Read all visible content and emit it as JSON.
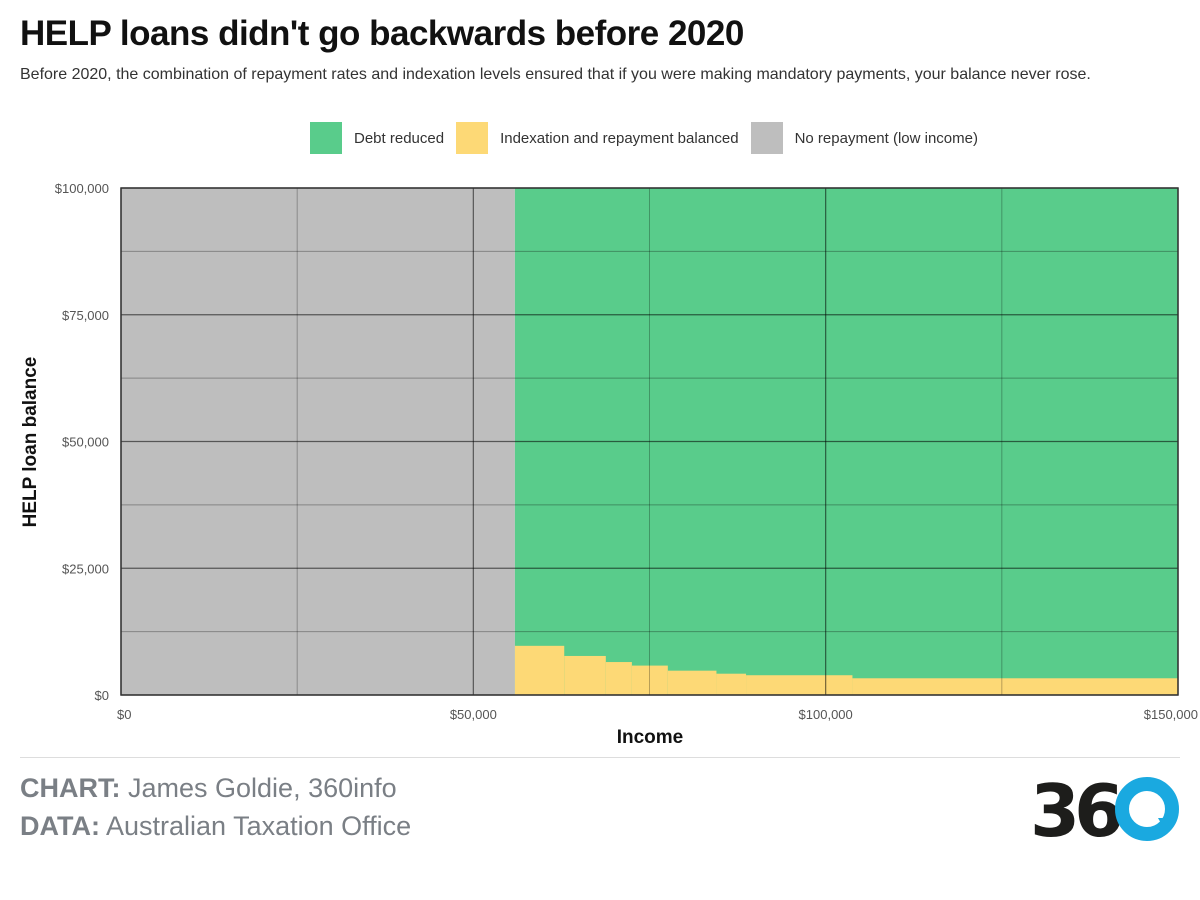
{
  "header": {
    "title": "HELP loans didn't go backwards before 2020",
    "subtitle": "Before 2020, the combination of repayment rates and indexation levels ensured that if you were making mandatory payments, your balance never rose."
  },
  "legend": [
    {
      "label": "Debt reduced",
      "color": "#59cc8b"
    },
    {
      "label": "Indexation and repayment balanced",
      "color": "#fdd976"
    },
    {
      "label": "No repayment (low income)",
      "color": "#bebebe"
    }
  ],
  "chart_data": {
    "type": "area",
    "xlabel": "Income",
    "ylabel": "HELP loan balance",
    "xlim": [
      0,
      150000
    ],
    "ylim": [
      0,
      100000
    ],
    "x_ticks": [
      {
        "value": 0,
        "label": "$0"
      },
      {
        "value": 50000,
        "label": "$50,000"
      },
      {
        "value": 100000,
        "label": "$100,000"
      },
      {
        "value": 150000,
        "label": "$150,000"
      }
    ],
    "y_ticks": [
      {
        "value": 0,
        "label": "$0"
      },
      {
        "value": 25000,
        "label": "$25,000"
      },
      {
        "value": 50000,
        "label": "$50,000"
      },
      {
        "value": 75000,
        "label": "$75,000"
      },
      {
        "value": 100000,
        "label": "$100,000"
      }
    ],
    "grid": true,
    "repayment_threshold_income": 55900,
    "regions": {
      "no_repayment": {
        "color": "#bebebe",
        "x_range": [
          0,
          55900
        ]
      },
      "debt_reduced": {
        "color": "#59cc8b"
      },
      "balanced": {
        "color": "#fdd976"
      }
    },
    "balanced_steps": [
      {
        "x_start": 55900,
        "x_end": 62900,
        "y": 9700
      },
      {
        "x_start": 62900,
        "x_end": 68800,
        "y": 7700
      },
      {
        "x_start": 68800,
        "x_end": 72500,
        "y": 6500
      },
      {
        "x_start": 72500,
        "x_end": 77600,
        "y": 5800
      },
      {
        "x_start": 77600,
        "x_end": 84500,
        "y": 4800
      },
      {
        "x_start": 84500,
        "x_end": 88700,
        "y": 4200
      },
      {
        "x_start": 88700,
        "x_end": 103800,
        "y": 3900
      },
      {
        "x_start": 103800,
        "x_end": 150000,
        "y": 3300
      }
    ]
  },
  "credits": {
    "chart_label": "CHART:",
    "chart_value": " James Goldie, 360info",
    "data_label": "DATA:",
    "data_value": " Australian Taxation Office"
  },
  "logo": {
    "text": "360"
  }
}
